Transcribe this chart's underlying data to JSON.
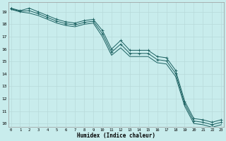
{
  "xlabel": "Humidex (Indice chaleur)",
  "ylabel": "",
  "bg_color": "#c8ecec",
  "grid_color": "#b8dada",
  "line_color": "#1a6060",
  "x": [
    0,
    1,
    2,
    3,
    4,
    5,
    6,
    7,
    8,
    9,
    10,
    11,
    12,
    13,
    14,
    15,
    16,
    17,
    18,
    19,
    20,
    21,
    22,
    23
  ],
  "line1": [
    19.3,
    19.1,
    19.3,
    19.0,
    18.7,
    18.4,
    18.2,
    18.1,
    18.3,
    18.4,
    17.5,
    16.0,
    16.7,
    15.9,
    15.9,
    15.9,
    15.4,
    15.3,
    14.3,
    11.8,
    10.4,
    10.3,
    10.1,
    10.3
  ],
  "line2": [
    19.25,
    19.05,
    19.1,
    18.85,
    18.55,
    18.25,
    18.05,
    17.95,
    18.15,
    18.25,
    17.25,
    15.75,
    16.4,
    15.65,
    15.65,
    15.65,
    15.15,
    15.05,
    14.05,
    11.6,
    10.2,
    10.1,
    9.9,
    10.1
  ],
  "line3": [
    19.2,
    19.0,
    18.9,
    18.7,
    18.4,
    18.1,
    17.9,
    17.8,
    18.0,
    18.1,
    17.0,
    15.5,
    16.1,
    15.4,
    15.4,
    15.4,
    14.9,
    14.8,
    13.8,
    11.4,
    10.0,
    9.9,
    9.7,
    9.9
  ],
  "ylim_min": 10,
  "ylim_max": 19.5,
  "xlim_min": 0,
  "xlim_max": 23
}
